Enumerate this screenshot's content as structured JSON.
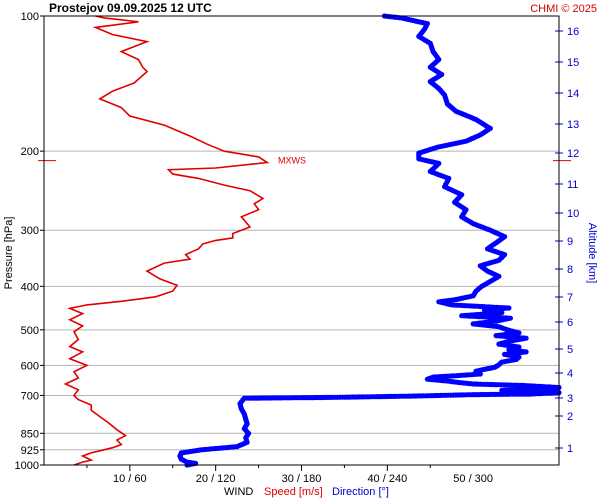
{
  "title": "Prostejov    09.09.2025 12 UTC",
  "copyright": "CHMI © 2025",
  "chart_data": {
    "type": "line",
    "y_axis": {
      "label": "Pressure [hPa]",
      "scale": "log",
      "range": [
        1000,
        100
      ],
      "ticks": [
        100,
        200,
        300,
        400,
        500,
        600,
        700,
        850,
        925,
        1000
      ]
    },
    "right_axis": {
      "label": "Altitude [km]",
      "ticks": [
        1,
        2,
        3,
        4,
        5,
        6,
        7,
        8,
        9,
        10,
        11,
        12,
        13,
        14,
        15,
        16
      ]
    },
    "x_axis": {
      "label_prefix": "WIND",
      "label_speed": "Speed [m/s]",
      "label_direction": "Direction [°]",
      "tick_labels": [
        "10 / 60",
        "20 / 120",
        "30 / 180",
        "40 / 240",
        "50 / 300"
      ],
      "speed_range": [
        0,
        60
      ],
      "direction_range": [
        0,
        360
      ]
    },
    "grid": true,
    "annotation": "MXWS",
    "max_wind_level_hpa": 210,
    "series": [
      {
        "name": "Speed [m/s]",
        "color": "#e00000",
        "points": [
          [
            3.5,
            1000
          ],
          [
            4.5,
            985
          ],
          [
            5.5,
            975
          ],
          [
            4.5,
            955
          ],
          [
            5.5,
            940
          ],
          [
            6.5,
            930
          ],
          [
            8,
            915
          ],
          [
            9,
            900
          ],
          [
            8.5,
            880
          ],
          [
            9.5,
            860
          ],
          [
            8.5,
            835
          ],
          [
            7.5,
            805
          ],
          [
            6.5,
            780
          ],
          [
            5.5,
            755
          ],
          [
            5.5,
            735
          ],
          [
            4,
            715
          ],
          [
            3.5,
            700
          ],
          [
            4,
            680
          ],
          [
            2.5,
            660
          ],
          [
            4,
            640
          ],
          [
            3.5,
            620
          ],
          [
            5,
            600
          ],
          [
            3,
            580
          ],
          [
            4.5,
            560
          ],
          [
            3,
            545
          ],
          [
            4,
            525
          ],
          [
            3.5,
            505
          ],
          [
            4.5,
            490
          ],
          [
            3,
            475
          ],
          [
            4.5,
            460
          ],
          [
            3,
            448
          ],
          [
            5,
            440
          ],
          [
            9,
            432
          ],
          [
            13,
            422
          ],
          [
            15,
            410
          ],
          [
            15.5,
            398
          ],
          [
            13.5,
            385
          ],
          [
            12,
            370
          ],
          [
            14,
            355
          ],
          [
            17,
            348
          ],
          [
            16.5,
            340
          ],
          [
            18,
            330
          ],
          [
            18.5,
            322
          ],
          [
            20,
            316
          ],
          [
            22,
            312
          ],
          [
            22,
            305
          ],
          [
            24,
            295
          ],
          [
            23,
            280
          ],
          [
            25,
            270
          ],
          [
            24.5,
            262
          ],
          [
            25.5,
            255
          ],
          [
            24,
            245
          ],
          [
            21,
            238
          ],
          [
            18,
            230
          ],
          [
            15,
            225
          ],
          [
            14.5,
            220
          ],
          [
            20,
            218
          ],
          [
            26,
            212
          ],
          [
            25,
            206
          ],
          [
            21,
            200
          ],
          [
            19,
            193
          ],
          [
            17,
            185
          ],
          [
            14,
            175
          ],
          [
            10,
            167
          ],
          [
            9,
            160
          ],
          [
            6.5,
            153
          ],
          [
            8,
            147
          ],
          [
            10.5,
            141
          ],
          [
            12,
            133
          ],
          [
            11.5,
            130
          ],
          [
            11,
            125
          ],
          [
            9,
            120
          ],
          [
            10.5,
            117
          ],
          [
            12,
            114
          ],
          [
            8,
            110
          ],
          [
            6,
            106
          ],
          [
            11,
            103
          ],
          [
            7,
            101
          ],
          [
            6,
            100
          ]
        ]
      },
      {
        "name": "Direction [°]",
        "color": "#0000ff",
        "points": [
          [
            100,
            1000
          ],
          [
            106,
            992
          ],
          [
            100,
            985
          ],
          [
            96,
            970
          ],
          [
            95,
            955
          ],
          [
            96,
            940
          ],
          [
            110,
            925
          ],
          [
            135,
            910
          ],
          [
            142,
            890
          ],
          [
            141,
            870
          ],
          [
            143,
            850
          ],
          [
            140,
            830
          ],
          [
            142,
            810
          ],
          [
            141,
            790
          ],
          [
            140,
            770
          ],
          [
            138,
            750
          ],
          [
            137,
            730
          ],
          [
            140,
            710
          ],
          [
            200,
            707
          ],
          [
            260,
            702
          ],
          [
            300,
            697
          ],
          [
            340,
            695
          ],
          [
            360,
            690
          ],
          [
            340,
            685
          ],
          [
            320,
            682
          ],
          [
            350,
            677
          ],
          [
            360,
            672
          ],
          [
            335,
            665
          ],
          [
            300,
            660
          ],
          [
            290,
            655
          ],
          [
            282,
            650
          ],
          [
            268,
            644
          ],
          [
            272,
            637
          ],
          [
            290,
            632
          ],
          [
            305,
            627
          ],
          [
            302,
            618
          ],
          [
            308,
            612
          ],
          [
            315,
            606
          ],
          [
            318,
            598
          ],
          [
            320,
            590
          ],
          [
            330,
            582
          ],
          [
            332,
            575
          ],
          [
            322,
            567
          ],
          [
            337,
            560
          ],
          [
            325,
            553
          ],
          [
            332,
            546
          ],
          [
            318,
            538
          ],
          [
            325,
            530
          ],
          [
            337,
            522
          ],
          [
            316,
            515
          ],
          [
            332,
            508
          ],
          [
            324,
            500
          ],
          [
            318,
            492
          ],
          [
            300,
            485
          ],
          [
            316,
            478
          ],
          [
            326,
            471
          ],
          [
            292,
            465
          ],
          [
            320,
            458
          ],
          [
            308,
            452
          ],
          [
            325,
            447
          ],
          [
            285,
            440
          ],
          [
            276,
            433
          ],
          [
            288,
            428
          ],
          [
            300,
            420
          ],
          [
            302,
            410
          ],
          [
            306,
            400
          ],
          [
            312,
            390
          ],
          [
            318,
            380
          ],
          [
            310,
            370
          ],
          [
            305,
            360
          ],
          [
            318,
            350
          ],
          [
            322,
            340
          ],
          [
            310,
            330
          ],
          [
            316,
            320
          ],
          [
            322,
            310
          ],
          [
            312,
            300
          ],
          [
            300,
            290
          ],
          [
            292,
            280
          ],
          [
            295,
            270
          ],
          [
            287,
            260
          ],
          [
            292,
            250
          ],
          [
            280,
            240
          ],
          [
            283,
            230
          ],
          [
            270,
            222
          ],
          [
            276,
            213
          ],
          [
            262,
            208
          ],
          [
            262,
            202
          ],
          [
            275,
            196
          ],
          [
            295,
            190
          ],
          [
            305,
            184
          ],
          [
            312,
            178
          ],
          [
            302,
            170
          ],
          [
            288,
            163
          ],
          [
            282,
            157
          ],
          [
            280,
            150
          ],
          [
            276,
            145
          ],
          [
            270,
            140
          ],
          [
            278,
            135
          ],
          [
            270,
            130
          ],
          [
            276,
            125
          ],
          [
            272,
            120
          ],
          [
            270,
            115
          ],
          [
            262,
            111
          ],
          [
            266,
            107
          ],
          [
            268,
            104
          ],
          [
            250,
            101
          ],
          [
            238,
            100
          ]
        ]
      }
    ]
  }
}
